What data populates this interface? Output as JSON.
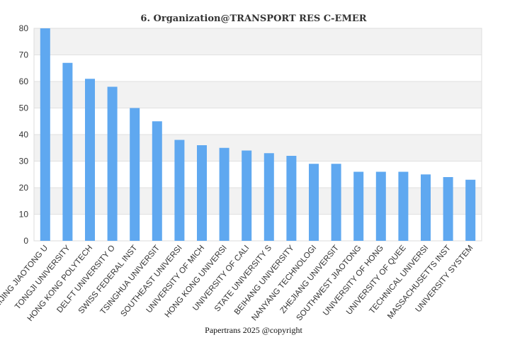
{
  "chart_data": {
    "type": "bar",
    "title": "6. Organization@TRANSPORT RES C-EMER",
    "xlabel": "",
    "ylabel": "",
    "ylim": [
      0,
      80
    ],
    "yticks": [
      0,
      10,
      20,
      30,
      40,
      50,
      60,
      70,
      80
    ],
    "grid": true,
    "legend": "none",
    "bar_color": "#5fa8f0",
    "band_color": "#f2f2f2",
    "categories": [
      "BEIJING JIAOTONG U",
      "TONGJI UNIVERSITY",
      "HONG KONG POLYTECH",
      "DELFT UNIVERSITY O",
      "SWISS FEDERAL INST",
      "TSINGHUA UNIVERSIT",
      "SOUTHEAST UNIVERSI",
      "UNIVERSITY OF MICH",
      "HONG KONG UNIVERSI",
      "UNIVERSITY OF CALI",
      "STATE UNIVERSITY S",
      "BEIHANG UNIVERSITY",
      "NANYANG TECHNOLOGI",
      "ZHEJIANG UNIVERSIT",
      "SOUTHWEST JIAOTONG",
      "UNIVERSITY OF HONG",
      "UNIVERSITY OF QUEE",
      "TECHNICAL UNIVERSI",
      "MASSACHUSETTS INST",
      "UNIVERSITY SYSTEM"
    ],
    "values": [
      80,
      67,
      61,
      58,
      50,
      45,
      38,
      36,
      35,
      34,
      33,
      32,
      29,
      29,
      26,
      26,
      26,
      25,
      24,
      23
    ]
  },
  "footer": {
    "credit": "Papertrans 2025 @copyright"
  }
}
